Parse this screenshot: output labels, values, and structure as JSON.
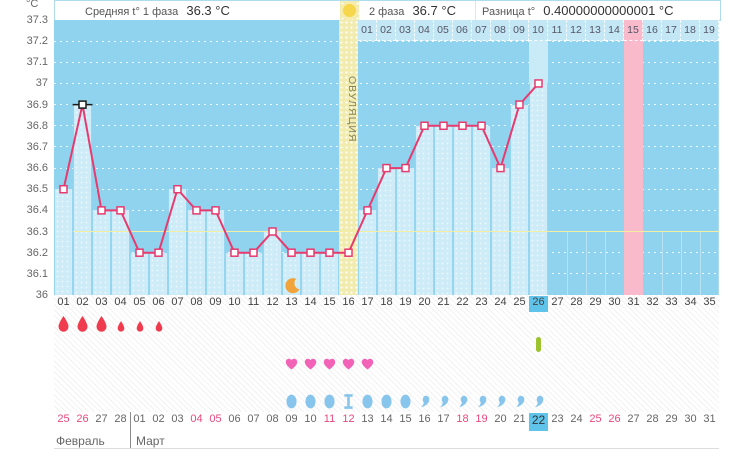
{
  "summary": {
    "phase1_label": "Средняя t° 1 фаза",
    "phase1_value": "36.3 °C",
    "phase2_label": "2 фаза",
    "phase2_value": "36.7 °C",
    "diff_label": "Разница t°",
    "diff_value": "0.40000000000001 °C",
    "sun_icon": "sun-icon"
  },
  "chart_data": {
    "type": "line",
    "ylabel": "°C",
    "ylim": [
      36.0,
      37.3
    ],
    "ytick_step": 0.1,
    "ytick_labels": [
      "37.3",
      "37.2",
      "37.1",
      "37",
      "36.9",
      "36.8",
      "36.7",
      "36.6",
      "36.5",
      "36.4",
      "36.3",
      "36.2",
      "36.1",
      "36"
    ],
    "grid": "dotted-white-horizontal",
    "x_cycle_days": [
      "01",
      "02",
      "03",
      "04",
      "05",
      "06",
      "07",
      "08",
      "09",
      "10",
      "11",
      "12",
      "13",
      "14",
      "15",
      "16",
      "17",
      "18",
      "19",
      "20",
      "21",
      "22",
      "23",
      "24",
      "25",
      "26",
      "27",
      "28",
      "29",
      "30",
      "31",
      "32",
      "33",
      "34",
      "35"
    ],
    "temperatures": [
      36.5,
      36.9,
      36.4,
      36.4,
      36.2,
      36.2,
      36.5,
      36.4,
      36.4,
      36.2,
      36.2,
      36.3,
      36.2,
      36.2,
      36.2,
      36.2,
      36.4,
      36.6,
      36.6,
      36.8,
      36.8,
      36.8,
      36.8,
      36.6,
      36.9,
      37.0
    ],
    "selected_day": 2,
    "coverline_value": 36.3,
    "ovulation_day": 16,
    "ovulation_label": "ОВУЛЯЦИЯ",
    "today_day": 26,
    "expected_period_day": 31,
    "moon_day": 13,
    "dpo_header": {
      "start_day": 17,
      "labels": [
        "01",
        "02",
        "03",
        "04",
        "05",
        "06",
        "07",
        "08",
        "09",
        "10",
        "11",
        "12",
        "13",
        "14",
        "15",
        "16",
        "17",
        "18",
        "19"
      ],
      "highlighted_label": "15"
    }
  },
  "rows": {
    "menstruation": [
      {
        "day": 1,
        "size": "big"
      },
      {
        "day": 2,
        "size": "big"
      },
      {
        "day": 3,
        "size": "big"
      },
      {
        "day": 4,
        "size": "small"
      },
      {
        "day": 5,
        "size": "small"
      },
      {
        "day": 6,
        "size": "small"
      }
    ],
    "pill_days": [
      26
    ],
    "intercourse_days": [
      13,
      14,
      15,
      16,
      17
    ],
    "fluid": [
      {
        "day": 13,
        "icon": "oval"
      },
      {
        "day": 14,
        "icon": "oval"
      },
      {
        "day": 15,
        "icon": "oval"
      },
      {
        "day": 16,
        "icon": "stretchy"
      },
      {
        "day": 17,
        "icon": "oval"
      },
      {
        "day": 18,
        "icon": "oval"
      },
      {
        "day": 19,
        "icon": "oval"
      },
      {
        "day": 20,
        "icon": "comma"
      },
      {
        "day": 21,
        "icon": "comma"
      },
      {
        "day": 22,
        "icon": "comma"
      },
      {
        "day": 23,
        "icon": "comma"
      },
      {
        "day": 24,
        "icon": "comma"
      },
      {
        "day": 25,
        "icon": "comma"
      },
      {
        "day": 26,
        "icon": "comma"
      }
    ]
  },
  "calendar": {
    "month_labels": [
      "Февраль",
      "Март"
    ],
    "divider_after_index": 3,
    "dates": [
      {
        "label": "25",
        "weekend": true
      },
      {
        "label": "26",
        "weekend": true
      },
      {
        "label": "27"
      },
      {
        "label": "28"
      },
      {
        "label": "01"
      },
      {
        "label": "02"
      },
      {
        "label": "03"
      },
      {
        "label": "04",
        "weekend": true
      },
      {
        "label": "05",
        "weekend": true
      },
      {
        "label": "06"
      },
      {
        "label": "07"
      },
      {
        "label": "08"
      },
      {
        "label": "09"
      },
      {
        "label": "10"
      },
      {
        "label": "11",
        "weekend": true
      },
      {
        "label": "12",
        "weekend": true
      },
      {
        "label": "13"
      },
      {
        "label": "14"
      },
      {
        "label": "15"
      },
      {
        "label": "16"
      },
      {
        "label": "17"
      },
      {
        "label": "18",
        "weekend": true
      },
      {
        "label": "19",
        "weekend": true
      },
      {
        "label": "20"
      },
      {
        "label": "21"
      },
      {
        "label": "22",
        "today": true
      },
      {
        "label": "23"
      },
      {
        "label": "24"
      },
      {
        "label": "25",
        "weekend": true
      },
      {
        "label": "26",
        "weekend": true
      },
      {
        "label": "27"
      },
      {
        "label": "28"
      },
      {
        "label": "29"
      },
      {
        "label": "30"
      },
      {
        "label": "31"
      }
    ]
  },
  "colors": {
    "chart_bg": "#8fd3ee",
    "bar_fill": "#cdecf8",
    "header_cell_bg": "#c3e7f5",
    "today_blue": "#5fc3ea",
    "ovulation_bg": "#f1ebad",
    "pink_band": "#f9bacc",
    "line": "#e73a6e",
    "coverline": "#f3eea2",
    "drop_red": "#ef3b4d",
    "heart_pink": "#f263b8",
    "fluid_blue": "#87c5ec",
    "pill_green": "#9cc22d",
    "moon_orange": "#f1a43c",
    "weekend_red": "#e8487f",
    "text_gray": "#555",
    "border_blue": "#aedcee"
  }
}
